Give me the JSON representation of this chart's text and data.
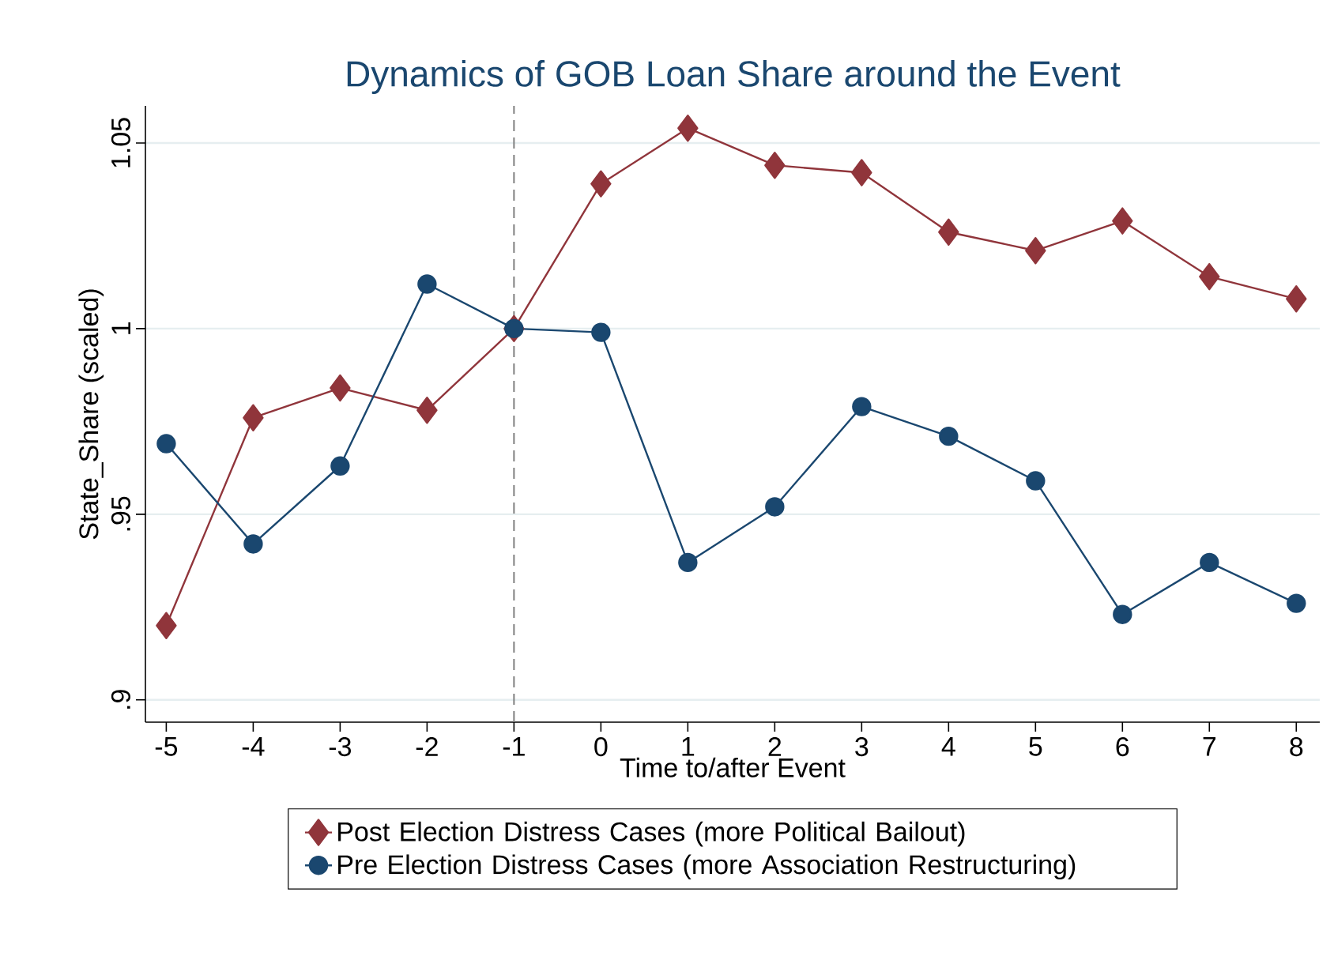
{
  "chart_data": {
    "type": "line",
    "title": "Dynamics of GOB Loan Share around the Event",
    "xlabel": "Time to/after Event",
    "ylabel": "State_Share (scaled)",
    "x": [
      -5,
      -4,
      -3,
      -2,
      -1,
      0,
      1,
      2,
      3,
      4,
      5,
      6,
      7,
      8
    ],
    "series": [
      {
        "name": "Post Election Distress Cases (more Political Bailout)",
        "color": "#90353b",
        "marker": "diamond",
        "values": [
          0.92,
          0.976,
          0.984,
          0.978,
          1.0,
          1.039,
          1.054,
          1.044,
          1.042,
          1.026,
          1.021,
          1.029,
          1.014,
          1.008
        ]
      },
      {
        "name": "Pre Election Distress Cases (more Association Restructuring)",
        "color": "#1a476f",
        "marker": "circle",
        "values": [
          0.969,
          0.942,
          0.963,
          1.012,
          1.0,
          0.999,
          0.937,
          0.952,
          0.979,
          0.971,
          0.959,
          0.923,
          0.937,
          0.926
        ]
      }
    ],
    "xlim": [
      -5.24,
      8.27
    ],
    "ylim": [
      0.894,
      1.06
    ],
    "xticks": [
      -5,
      -4,
      -3,
      -2,
      -1,
      0,
      1,
      2,
      3,
      4,
      5,
      6,
      7,
      8
    ],
    "yticks": [
      {
        "value": 0.9,
        "label": ".9"
      },
      {
        "value": 0.95,
        "label": ".95"
      },
      1,
      1.05
    ],
    "ref_lines": [
      {
        "axis": "x",
        "value": -1,
        "color": "#808080",
        "line_style": "dashed"
      }
    ],
    "grid": "y",
    "legend": "bottom",
    "line_style": "solid"
  }
}
